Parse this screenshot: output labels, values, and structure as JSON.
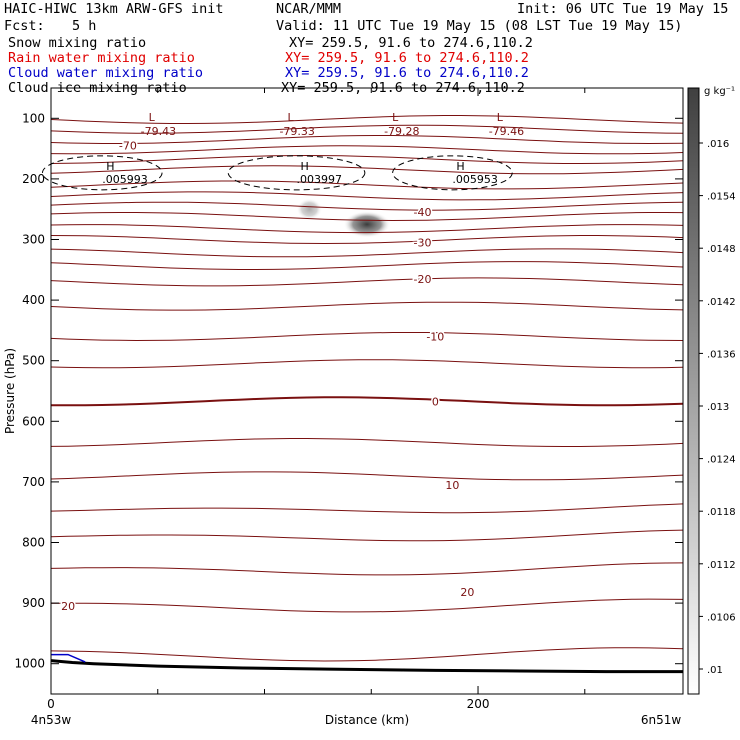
{
  "header": {
    "model": "HAIC-HIWC 13km ARW-GFS init",
    "org": "NCAR/MMM",
    "init": "Init: 06 UTC Tue 19 May 15",
    "fcst_label": "Fcst:",
    "fcst_value": "5 h",
    "valid": "Valid: 11 UTC Tue 19 May 15 (08 LST Tue 19 May 15)",
    "fields": [
      {
        "name": "Snow mixing ratio",
        "xy": "XY= 259.5, 91.6 to 274.6,110.2",
        "color": "#000000"
      },
      {
        "name": "Rain water mixing ratio",
        "xy": "XY= 259.5, 91.6 to 274.6,110.2",
        "color": "#e00000"
      },
      {
        "name": "Cloud water mixing ratio",
        "xy": "XY= 259.5, 91.6 to 274.6,110.2",
        "color": "#0000c8"
      },
      {
        "name": "Cloud ice mixing ratio",
        "xy": "XY= 259.5, 91.6 to 274.6,110.2",
        "color": "#000000"
      }
    ]
  },
  "chart_data": {
    "type": "heatmap",
    "xlabel": "Distance (km)",
    "ylabel": "Pressure (hPa)",
    "xlim": [
      0,
      296
    ],
    "x_ticks": [
      0,
      200
    ],
    "x_minor_ticks": [
      50,
      100,
      150,
      250
    ],
    "x_end_labels": [
      "4n53w",
      "6n51w"
    ],
    "ylim": [
      1050,
      50
    ],
    "y_ticks": [
      100,
      200,
      300,
      400,
      500,
      600,
      700,
      800,
      900,
      1000
    ],
    "colorbar": {
      "unit": "g kg⁻¹",
      "labels": [
        ".016",
        ".0154",
        ".0148",
        ".0142",
        ".0136",
        ".013",
        ".0124",
        ".0118",
        ".0112",
        ".0106",
        ".01"
      ],
      "dark": "#404040",
      "light": "#ffffff"
    },
    "temperature_contours": {
      "color": "#7a1010",
      "labels": [
        {
          "text": "-70",
          "x": 36,
          "p": 145
        },
        {
          "text": "-40",
          "x": 174,
          "p": 255
        },
        {
          "text": "-30",
          "x": 174,
          "p": 305
        },
        {
          "text": "-20",
          "x": 174,
          "p": 365
        },
        {
          "text": "-10",
          "x": 180,
          "p": 460
        },
        {
          "text": "0",
          "x": 180,
          "p": 567
        },
        {
          "text": "10",
          "x": 188,
          "p": 705
        },
        {
          "text": "20",
          "x": 195,
          "p": 882
        },
        {
          "text": "20",
          "x": 8,
          "p": 905
        }
      ],
      "extrema": [
        {
          "kind": "L",
          "value": "-79.43",
          "x": 42,
          "p": 98
        },
        {
          "kind": "L",
          "value": "-79.33",
          "x": 107,
          "p": 98
        },
        {
          "kind": "L",
          "value": "-79.28",
          "x": 156,
          "p": 98
        },
        {
          "kind": "L",
          "value": "-79.46",
          "x": 205,
          "p": 98
        }
      ]
    },
    "ice_contours": {
      "color": "#000000",
      "extrema": [
        {
          "kind": "H",
          "value": ".005993",
          "x": 24,
          "p": 190
        },
        {
          "kind": "H",
          "value": ".003997",
          "x": 115,
          "p": 190
        },
        {
          "kind": "H",
          "value": ".005953",
          "x": 188,
          "p": 190
        }
      ]
    },
    "snow_blobs": [
      {
        "x": 148,
        "p": 275,
        "rx": 11,
        "rp": 22,
        "intensity": 0.95
      },
      {
        "x": 121,
        "p": 250,
        "rx": 6,
        "rp": 18,
        "intensity": 0.4
      }
    ],
    "cloud_water_line": {
      "color": "#0000c8",
      "x": [
        0,
        8,
        16
      ],
      "p": [
        985,
        985,
        997
      ]
    },
    "terrain": {
      "x": [
        0,
        10,
        20,
        50,
        90,
        130,
        180,
        220,
        260,
        296
      ],
      "p": [
        995,
        998,
        1000,
        1004,
        1007,
        1009,
        1011,
        1012,
        1013,
        1013
      ]
    }
  }
}
